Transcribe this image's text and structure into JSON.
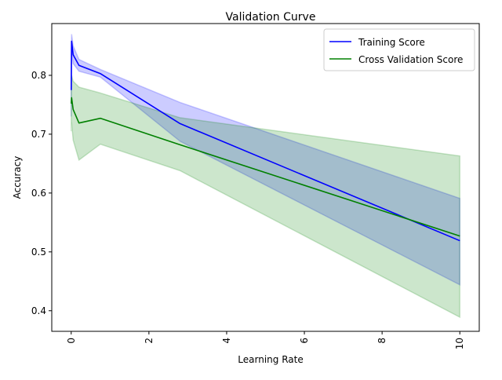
{
  "chart_data": {
    "type": "line",
    "title": "Validation Curve",
    "xlabel": "Learning Rate",
    "ylabel": "Accuracy",
    "xlim": [
      -0.5,
      10.5
    ],
    "ylim": [
      0.365,
      0.888
    ],
    "x_ticks": [
      0,
      2,
      4,
      6,
      8,
      10
    ],
    "x_tick_labels": [
      "0",
      "2",
      "4",
      "6",
      "8",
      "10"
    ],
    "y_ticks": [
      0.4,
      0.5,
      0.6,
      0.7,
      0.8
    ],
    "y_tick_labels": [
      "0.4",
      "0.5",
      "0.6",
      "0.7",
      "0.8"
    ],
    "grid": false,
    "legend_position": "top-right",
    "x": [
      0.001,
      0.01,
      0.05,
      0.2,
      0.75,
      2.8,
      10
    ],
    "series": [
      {
        "name": "Training Score",
        "color": "#0000ff",
        "band_color": "#0000ff",
        "values": [
          0.775,
          0.858,
          0.835,
          0.817,
          0.803,
          0.718,
          0.519
        ],
        "lower": [
          0.73,
          0.842,
          0.82,
          0.807,
          0.797,
          0.688,
          0.444
        ],
        "upper": [
          0.82,
          0.87,
          0.85,
          0.827,
          0.81,
          0.754,
          0.591
        ]
      },
      {
        "name": "Cross Validation Score",
        "color": "#008000",
        "band_color": "#008000",
        "values": [
          0.752,
          0.762,
          0.742,
          0.719,
          0.727,
          0.682,
          0.527
        ],
        "lower": [
          0.705,
          0.72,
          0.69,
          0.656,
          0.683,
          0.638,
          0.389
        ],
        "upper": [
          0.795,
          0.8,
          0.79,
          0.78,
          0.77,
          0.728,
          0.663
        ]
      }
    ]
  }
}
